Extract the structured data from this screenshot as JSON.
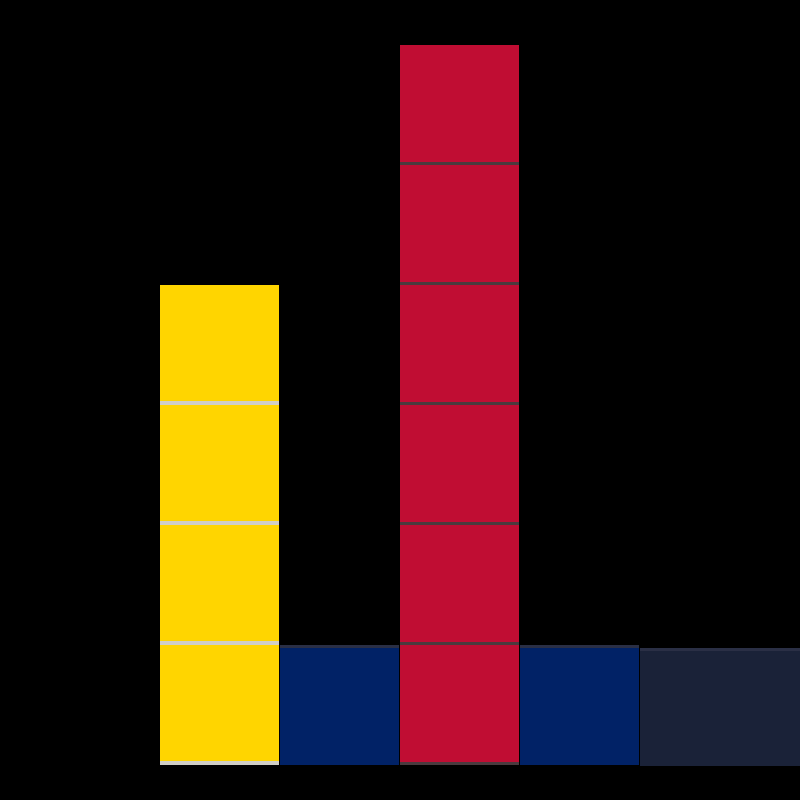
{
  "diagram": {
    "background_color": "#000000",
    "cube_colors": {
      "yellow": "#ffd500",
      "red": "#c00d33",
      "navy": "#012266",
      "dark_navy": "#1a2238"
    },
    "columns": [
      {
        "color": "yellow",
        "cube_count": 4
      },
      {
        "color": "navy",
        "cube_count": 1
      },
      {
        "color": "red",
        "cube_count": 6
      },
      {
        "color": "navy",
        "cube_count": 1
      },
      {
        "color": "dark_navy",
        "cube_count": 1
      }
    ]
  }
}
